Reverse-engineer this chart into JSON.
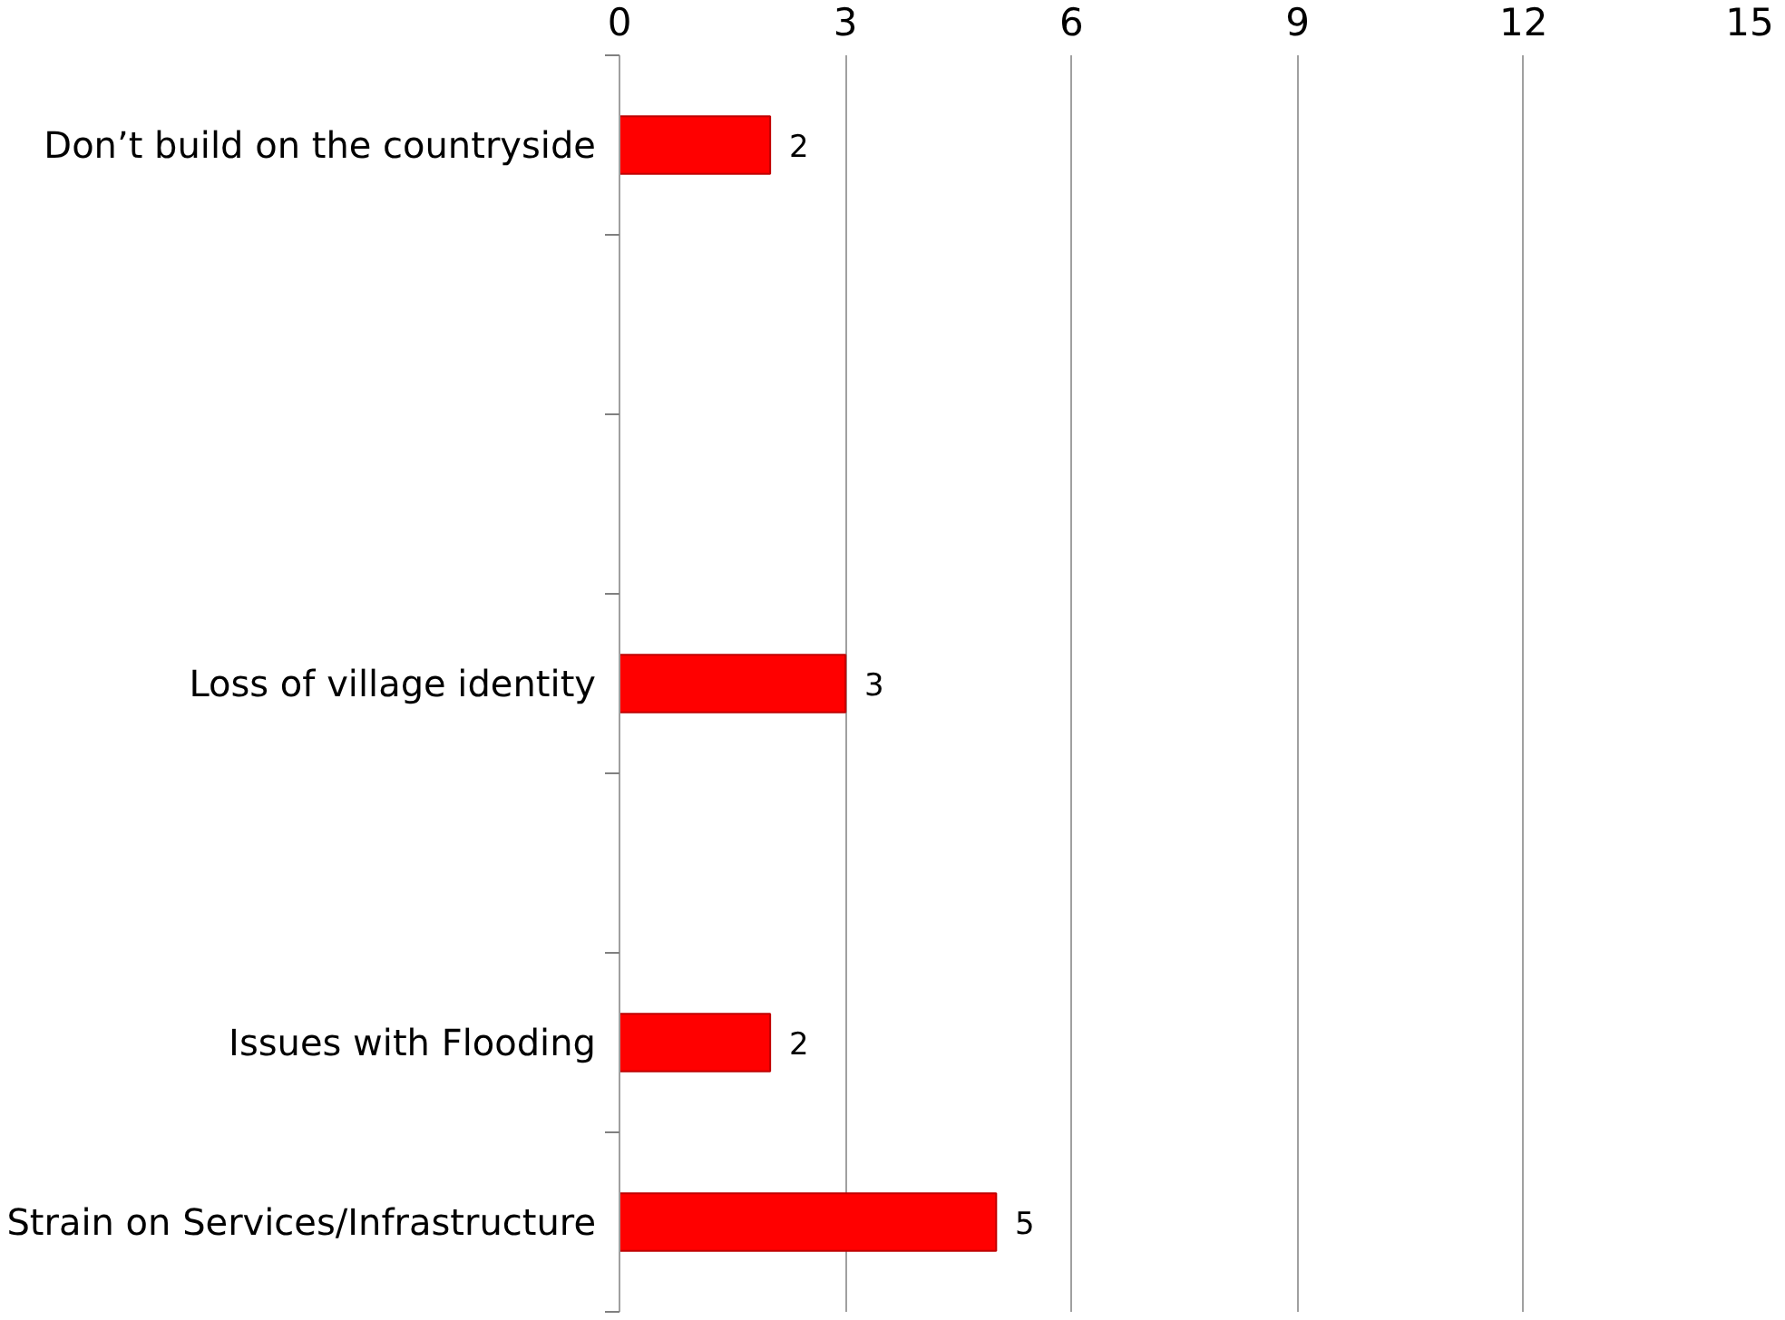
{
  "chart_data": {
    "type": "bar",
    "orientation": "horizontal",
    "categories": [
      "Don’t build on the countryside",
      null,
      null,
      "Loss of village identity",
      null,
      "Issues with Flooding",
      "Strain on Services/Infrastructure"
    ],
    "values": [
      2,
      null,
      null,
      3,
      null,
      2,
      5
    ],
    "color": "#ff0000",
    "xlim": [
      0,
      15
    ],
    "xticks": [
      0,
      3,
      6,
      9,
      12,
      15
    ],
    "grid": "x",
    "data_labels": true
  }
}
